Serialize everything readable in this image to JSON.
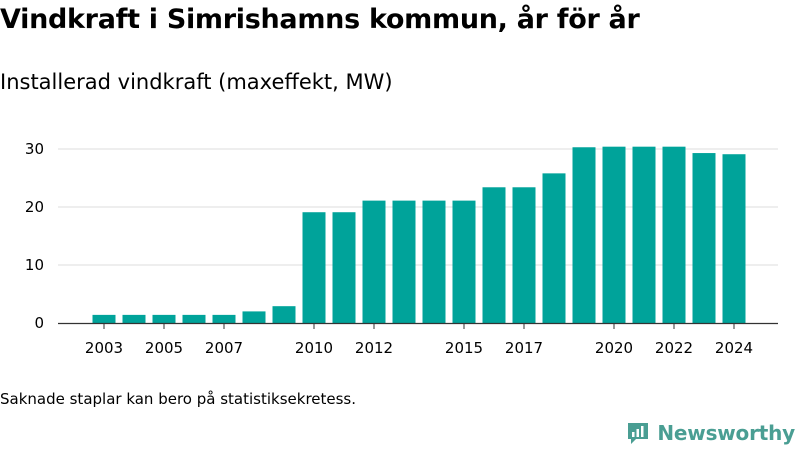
{
  "header": {
    "title": "Vindkraft i Simrishamns kommun, år för år",
    "subtitle": "Installerad vindkraft (maxeffekt, MW)"
  },
  "footer": {
    "note": "Saknade staplar kan bero på statistiksekretess.",
    "brand": "Newsworthy"
  },
  "colors": {
    "bar": "#00a39a",
    "grid": "#dddddd",
    "axis": "#333333",
    "brand": "#4a9e93"
  },
  "chart_data": {
    "type": "bar",
    "title": "Vindkraft i Simrishamns kommun, år för år",
    "subtitle": "Installerad vindkraft (maxeffekt, MW)",
    "xlabel": "",
    "ylabel": "",
    "categories": [
      2003,
      2004,
      2005,
      2006,
      2007,
      2008,
      2009,
      2010,
      2011,
      2012,
      2013,
      2014,
      2015,
      2016,
      2017,
      2018,
      2019,
      2020,
      2021,
      2022,
      2023,
      2024
    ],
    "values": [
      1.4,
      1.4,
      1.4,
      1.4,
      1.4,
      2.0,
      2.9,
      19.1,
      19.1,
      21.1,
      21.1,
      21.1,
      21.1,
      23.4,
      23.4,
      25.8,
      30.3,
      30.4,
      30.4,
      30.4,
      29.3,
      29.1
    ],
    "x_tick_labels": [
      "2003",
      "2005",
      "2007",
      "2010",
      "2012",
      "2015",
      "2017",
      "2020",
      "2022",
      "2024"
    ],
    "y_ticks": [
      0,
      10,
      20,
      30
    ],
    "ylim": [
      0,
      32
    ],
    "grid": true,
    "legend": "none"
  }
}
